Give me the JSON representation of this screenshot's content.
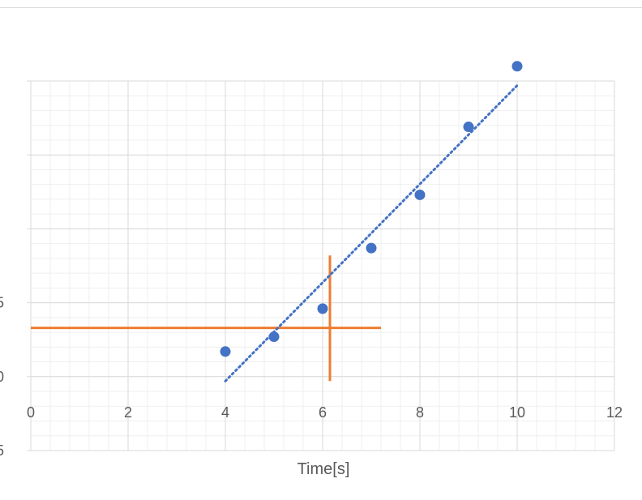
{
  "chart_data": {
    "type": "scatter",
    "title": "",
    "xlabel": "Time[s]",
    "ylabel": "",
    "xlim": [
      0,
      12
    ],
    "ylim": [
      -5,
      20
    ],
    "x_ticks": [
      "0",
      "2",
      "4",
      "6",
      "8",
      "10",
      "12"
    ],
    "y_ticks_visible": [
      "5",
      "0",
      "5"
    ],
    "grid": "major and minor",
    "series": [
      {
        "type": "scatter",
        "color": "#4472c4",
        "points": [
          {
            "x": 4,
            "y": 1.7
          },
          {
            "x": 5,
            "y": 2.7
          },
          {
            "x": 6,
            "y": 4.6
          },
          {
            "x": 7,
            "y": 8.7
          },
          {
            "x": 8,
            "y": 12.3
          },
          {
            "x": 9,
            "y": 16.9
          },
          {
            "x": 10,
            "y": 21.0
          }
        ]
      }
    ],
    "trendline": {
      "style": "dotted",
      "color": "#4472c4",
      "from": {
        "x": 4,
        "y": -0.3
      },
      "to": {
        "x": 10,
        "y": 19.7
      }
    },
    "annotations": [
      {
        "type": "horizontal-line",
        "color": "#ed7d31",
        "y": 3.3,
        "x_from": 0,
        "x_to": 7.2
      },
      {
        "type": "vertical-line",
        "color": "#ed7d31",
        "x": 6.15,
        "y_from": -0.3,
        "y_to": 8.2
      }
    ]
  }
}
